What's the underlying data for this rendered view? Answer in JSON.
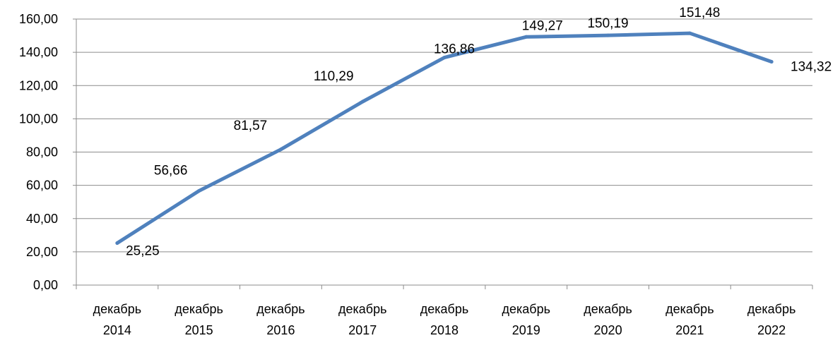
{
  "chart_data": {
    "type": "line",
    "title": "",
    "xlabel": "",
    "ylabel": "",
    "categories": [
      [
        "декабрь",
        "2014"
      ],
      [
        "декабрь",
        "2015"
      ],
      [
        "декабрь",
        "2016"
      ],
      [
        "декабрь",
        "2017"
      ],
      [
        "декабрь",
        "2018"
      ],
      [
        "декабрь",
        "2019"
      ],
      [
        "декабрь",
        "2020"
      ],
      [
        "декабрь",
        "2021"
      ],
      [
        "декабрь",
        "2022"
      ]
    ],
    "series": [
      {
        "values": [
          25.25,
          56.66,
          81.57,
          110.29,
          136.86,
          149.27,
          150.19,
          151.48,
          134.32
        ],
        "labels": [
          "25,25",
          "56,66",
          "81,57",
          "110,29",
          "136,86",
          "149,27",
          "150,19",
          "151,48",
          "134,32"
        ],
        "color": "#4f81bd"
      }
    ],
    "ylim": [
      0,
      160
    ],
    "yticks": [
      {
        "value": 0,
        "label": "0,00"
      },
      {
        "value": 20,
        "label": "20,00"
      },
      {
        "value": 40,
        "label": "40,00"
      },
      {
        "value": 60,
        "label": "60,00"
      },
      {
        "value": 80,
        "label": "80,00"
      },
      {
        "value": 100,
        "label": "100,00"
      },
      {
        "value": 120,
        "label": "120,00"
      },
      {
        "value": 140,
        "label": "140,00"
      },
      {
        "value": 160,
        "label": "160,00"
      }
    ],
    "grid": true,
    "legend": "none"
  }
}
